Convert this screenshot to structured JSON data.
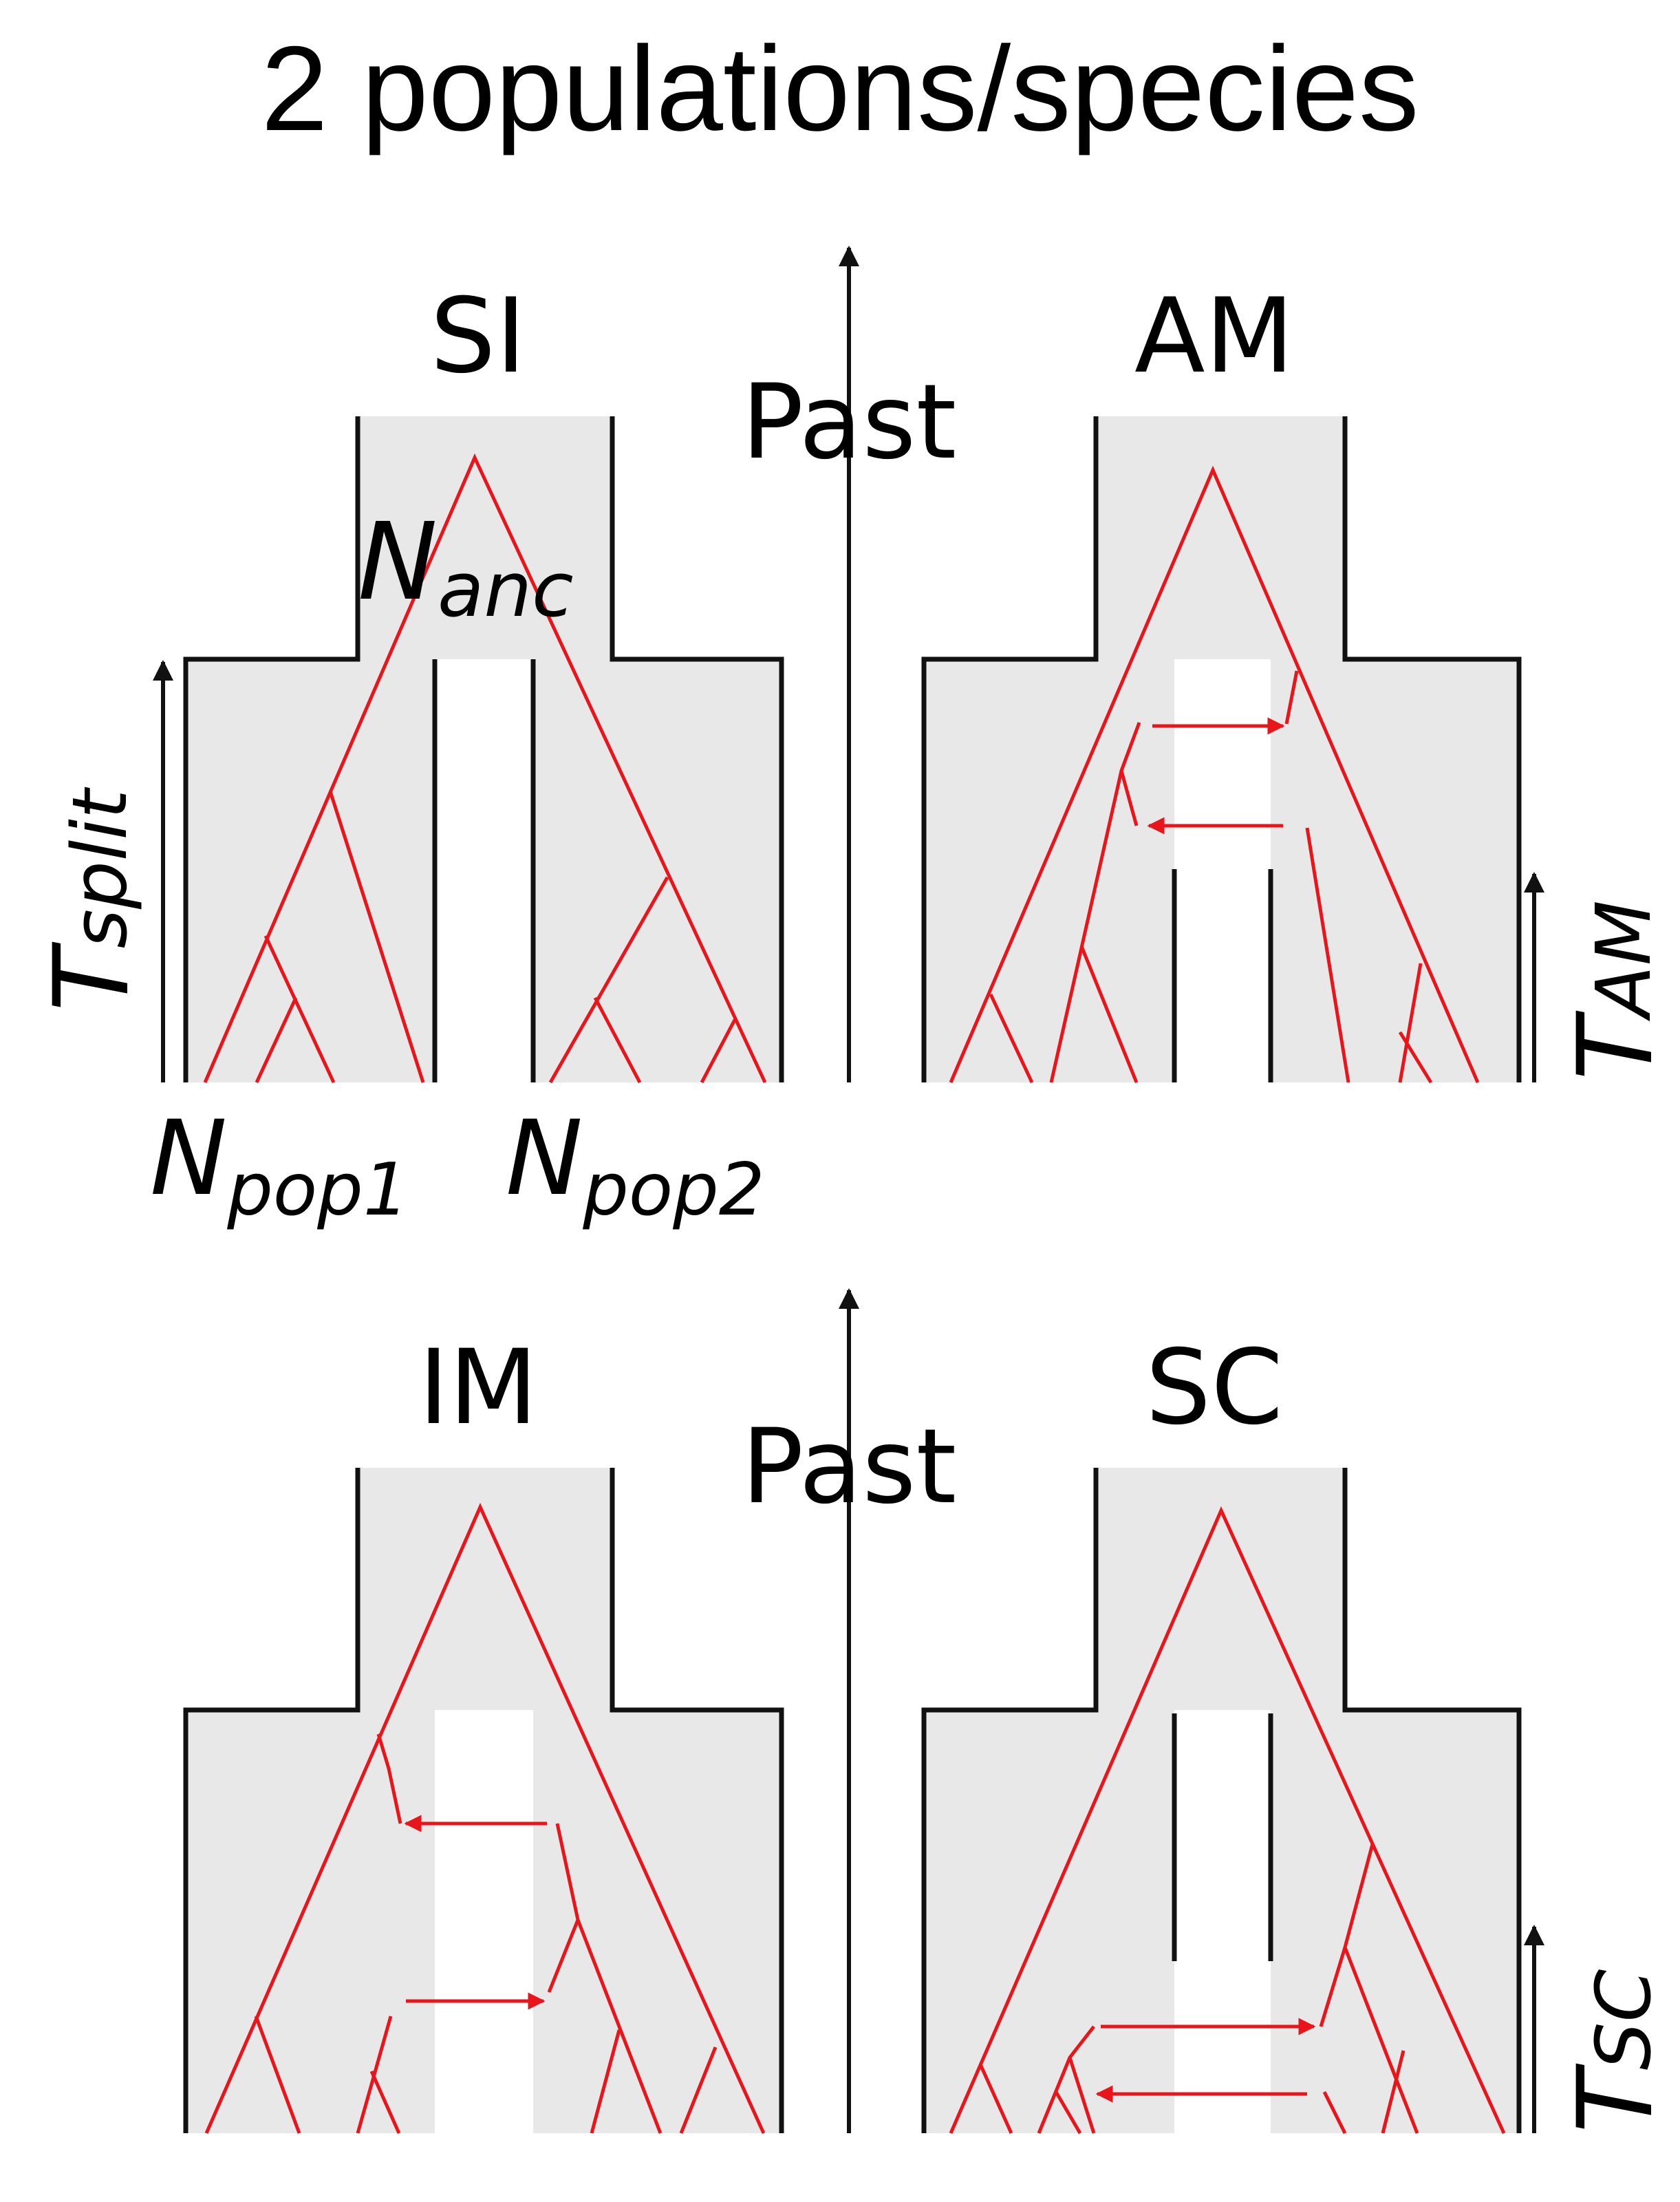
{
  "title": "2 populations/species",
  "panels": [
    {
      "id": "SI",
      "label": "SI"
    },
    {
      "id": "AM",
      "label": "AM"
    },
    {
      "id": "IM",
      "label": "IM"
    },
    {
      "id": "SC",
      "label": "SC"
    }
  ],
  "axis_label": "Past",
  "params": {
    "N": "N",
    "anc": "anc",
    "pop1": "pop1",
    "pop2": "pop2",
    "T": "T",
    "split": "split",
    "AM": "AM",
    "SC": "SC"
  },
  "colors": {
    "gene_tree": "#e8161b",
    "population": "#e8e8e8",
    "outline": "#111111"
  }
}
